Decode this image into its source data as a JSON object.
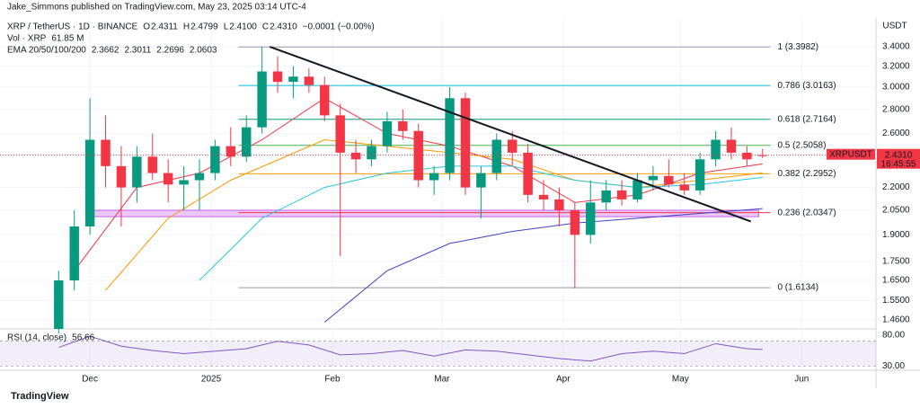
{
  "header": {
    "published": "Jake_Simmons published on TradingView.com, May 23, 2025 03:14 UTC-4",
    "symbol": "XRP / TetherUS · 1D · BINANCE",
    "ohlc": [
      {
        "key": "O",
        "text": "2.4311"
      },
      {
        "key": "H",
        "text": "2.4799"
      },
      {
        "key": "L",
        "text": "2.4100"
      },
      {
        "key": "C",
        "text": "2.4310"
      }
    ],
    "change": "−0.0001 (−0.00%)",
    "vol_label": "Vol · XRP",
    "vol_value": "61.85 M",
    "ema_label": "EMA 20/50/100/200",
    "ema_values": [
      "2.3662",
      "2.3011",
      "2.2696",
      "2.0603"
    ],
    "footer": "TradingView"
  },
  "chart_data": [
    {
      "type": "candlestick",
      "y_unit": "USDT",
      "log": true,
      "grid": true,
      "xlim": [
        -23,
        201
      ],
      "ylim": [
        1.424,
        3.717
      ],
      "xticks": [
        {
          "value": 0,
          "label": "Dec"
        },
        {
          "value": 31,
          "label": "2025"
        },
        {
          "value": 62,
          "label": "Feb"
        },
        {
          "value": 90,
          "label": "Mar"
        },
        {
          "value": 121,
          "label": "Apr"
        },
        {
          "value": 151,
          "label": "May"
        },
        {
          "value": 182,
          "label": "Jun"
        }
      ],
      "yticks": [
        {
          "value": 3.4,
          "label": "3.4000"
        },
        {
          "value": 3.2,
          "label": "3.2000"
        },
        {
          "value": 3.0,
          "label": "3.0000"
        },
        {
          "value": 2.8,
          "label": "2.8000"
        },
        {
          "value": 2.6,
          "label": "2.6000"
        },
        {
          "value": 2.2,
          "label": "2.2000"
        },
        {
          "value": 2.05,
          "label": "2.0500"
        },
        {
          "value": 1.9,
          "label": "1.9000"
        },
        {
          "value": 1.75,
          "label": "1.7500"
        },
        {
          "value": 1.65,
          "label": "1.6500"
        },
        {
          "value": 1.55,
          "label": "1.5500"
        },
        {
          "value": 1.46,
          "label": "1.4600"
        }
      ],
      "up_color": "#089981",
      "down_color": "#f23645",
      "candles": {
        "x": [
          -8,
          -4,
          0,
          4,
          8,
          12,
          16,
          20,
          24,
          28,
          32,
          36,
          40,
          44,
          48,
          52,
          56,
          60,
          64,
          68,
          72,
          76,
          80,
          84,
          88,
          92,
          96,
          100,
          104,
          108,
          112,
          116,
          120,
          124,
          128,
          132,
          136,
          140,
          144,
          148,
          152,
          156,
          160,
          164,
          168,
          172
        ],
        "open": [
          1.42,
          1.65,
          1.95,
          2.55,
          2.35,
          2.2,
          2.42,
          2.3,
          2.22,
          2.25,
          2.3,
          2.5,
          2.42,
          2.65,
          3.15,
          3.05,
          3.1,
          3.02,
          2.75,
          2.45,
          2.4,
          2.5,
          2.7,
          2.62,
          2.25,
          2.3,
          2.9,
          2.2,
          2.3,
          2.55,
          2.45,
          2.15,
          2.12,
          2.05,
          1.9,
          2.1,
          2.18,
          2.12,
          2.25,
          2.28,
          2.22,
          2.18,
          2.4,
          2.55,
          2.45,
          2.4311
        ],
        "high": [
          1.7,
          2.05,
          2.9,
          2.75,
          2.5,
          2.5,
          2.6,
          2.4,
          2.35,
          2.4,
          2.55,
          2.65,
          2.75,
          3.4,
          3.3,
          3.2,
          3.18,
          3.1,
          2.85,
          2.55,
          2.55,
          2.78,
          2.8,
          2.68,
          2.35,
          3.0,
          2.95,
          2.35,
          2.6,
          2.62,
          2.52,
          2.25,
          2.2,
          2.1,
          2.25,
          2.25,
          2.25,
          2.3,
          2.35,
          2.4,
          2.3,
          2.45,
          2.62,
          2.65,
          2.5,
          2.4799
        ],
        "low": [
          1.4,
          1.6,
          1.9,
          2.2,
          1.95,
          2.1,
          2.25,
          2.1,
          2.05,
          2.05,
          2.25,
          2.35,
          2.38,
          2.6,
          2.95,
          2.9,
          2.95,
          2.7,
          1.78,
          2.3,
          2.35,
          2.45,
          2.55,
          2.2,
          2.15,
          2.25,
          2.15,
          2.0,
          2.25,
          2.35,
          2.1,
          2.05,
          1.95,
          1.61,
          1.85,
          2.05,
          2.08,
          2.1,
          2.18,
          2.2,
          2.15,
          2.15,
          2.35,
          2.4,
          2.35,
          2.41
        ],
        "close": [
          1.65,
          1.95,
          2.55,
          2.35,
          2.2,
          2.42,
          2.3,
          2.22,
          2.25,
          2.3,
          2.5,
          2.42,
          2.65,
          3.15,
          3.05,
          3.1,
          3.02,
          2.75,
          2.45,
          2.4,
          2.5,
          2.7,
          2.62,
          2.25,
          2.3,
          2.9,
          2.2,
          2.3,
          2.55,
          2.45,
          2.15,
          2.12,
          2.05,
          1.9,
          2.1,
          2.18,
          2.12,
          2.25,
          2.28,
          2.22,
          2.18,
          2.4,
          2.55,
          2.45,
          2.4,
          2.431
        ]
      },
      "series": [
        {
          "color": "#f23645",
          "x": [
            -4,
            12,
            28,
            44,
            60,
            76,
            92,
            108,
            124,
            140,
            156,
            172
          ],
          "values": [
            1.7,
            2.2,
            2.3,
            2.55,
            2.9,
            2.6,
            2.5,
            2.35,
            2.1,
            2.15,
            2.3,
            2.3662
          ]
        },
        {
          "color": "#ff9800",
          "x": [
            4,
            20,
            36,
            60,
            76,
            92,
            108,
            124,
            140,
            156,
            172
          ],
          "values": [
            1.6,
            2.0,
            2.25,
            2.55,
            2.5,
            2.45,
            2.4,
            2.25,
            2.2,
            2.25,
            2.3011
          ]
        },
        {
          "color": "#26c6da",
          "x": [
            28,
            44,
            60,
            76,
            92,
            108,
            124,
            140,
            156,
            172
          ],
          "values": [
            1.65,
            2.0,
            2.2,
            2.3,
            2.35,
            2.35,
            2.25,
            2.2,
            2.22,
            2.2696
          ]
        },
        {
          "color": "#3f3fc4",
          "x": [
            60,
            76,
            92,
            108,
            124,
            140,
            156,
            172
          ],
          "values": [
            1.45,
            1.7,
            1.85,
            1.92,
            1.97,
            2.0,
            2.03,
            2.0603
          ]
        }
      ],
      "fib_x": [
        38,
        174
      ],
      "fib": [
        {
          "value": 3.3982,
          "label": "1 (3.3982)",
          "color": "#9598a1"
        },
        {
          "value": 3.0163,
          "label": "0.786 (3.0163)",
          "color": "#00bcd4"
        },
        {
          "value": 2.7164,
          "label": "0.618 (2.7164)",
          "color": "#089981"
        },
        {
          "value": 2.5058,
          "label": "0.5 (2.5058)",
          "color": "#4caf50"
        },
        {
          "value": 2.2952,
          "label": "0.382 (2.2952)",
          "color": "#ff9800"
        },
        {
          "value": 2.0347,
          "label": "0.236 (2.0347)",
          "color": "#f23645"
        },
        {
          "value": 1.6134,
          "label": "0 (1.6134)",
          "color": "#9598a1"
        }
      ],
      "trendline": {
        "x": [
          46,
          169
        ],
        "y": [
          3.4,
          1.98
        ]
      },
      "support_zone": {
        "x": [
          -1,
          171
        ],
        "y": [
          2.01,
          2.05
        ],
        "color": "#c561e8"
      },
      "last_price": {
        "symbol": "XRPUSDT",
        "value": 2.431,
        "label": "2.4310",
        "countdown": "16:45:55",
        "color": "#f23645"
      }
    },
    {
      "type": "line",
      "title": "RSI (14, close)",
      "value_label": "56.66",
      "color": "#7e57c2",
      "ylim": [
        26,
        87
      ],
      "band": [
        30,
        70
      ],
      "yticks": [
        {
          "value": 80,
          "label": "80.00"
        },
        {
          "value": 30,
          "label": "30.00"
        }
      ],
      "x": [
        -8,
        0,
        8,
        16,
        24,
        32,
        40,
        48,
        56,
        64,
        72,
        80,
        88,
        96,
        104,
        112,
        120,
        128,
        136,
        144,
        152,
        160,
        168,
        172
      ],
      "values": [
        60,
        78,
        62,
        55,
        50,
        54,
        58,
        70,
        64,
        48,
        50,
        55,
        46,
        56,
        54,
        48,
        42,
        38,
        50,
        54,
        50,
        66,
        58,
        56.66
      ]
    }
  ]
}
